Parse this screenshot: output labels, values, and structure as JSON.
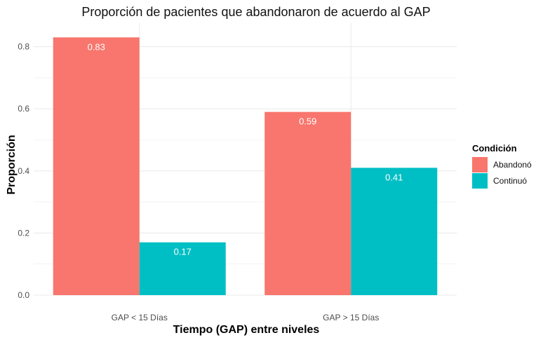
{
  "chart_data": {
    "type": "bar",
    "title": "Proporción de pacientes que abandonaron de acuerdo al GAP",
    "xlabel": "Tiempo (GAP) entre niveles",
    "ylabel": "Proporción",
    "categories": [
      "GAP < 15 Días",
      "GAP > 15 Días"
    ],
    "series": [
      {
        "name": "Abandonó",
        "values": [
          0.83,
          0.59
        ],
        "color": "#F8766D"
      },
      {
        "name": "Continuó",
        "values": [
          0.17,
          0.41
        ],
        "color": "#00BFC4"
      }
    ],
    "data_labels": [
      [
        "0.83",
        "0.59"
      ],
      [
        "0.17",
        "0.41"
      ]
    ],
    "ylim": [
      0,
      0.87
    ],
    "yticks": [
      0.0,
      0.2,
      0.4,
      0.6,
      0.8
    ],
    "ytick_labels": [
      "0.0",
      "0.2",
      "0.4",
      "0.6",
      "0.8"
    ],
    "grid": true,
    "legend": {
      "title": "Condición",
      "position": "right"
    }
  }
}
